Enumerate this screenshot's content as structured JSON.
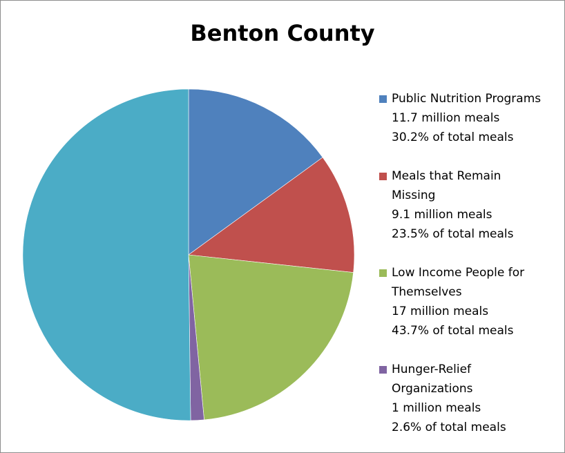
{
  "chart_data": {
    "type": "pie",
    "title": "Benton County",
    "slices": [
      {
        "label_lines": [
          "Public Nutrition Programs"
        ],
        "meals": "11.7 million meals",
        "percent_text": "30.2% of total meals",
        "value": 30.2,
        "color": "#4f81bd"
      },
      {
        "label_lines": [
          "Meals that Remain",
          "Missing"
        ],
        "meals": "9.1 million meals",
        "percent_text": "23.5% of total meals",
        "value": 23.5,
        "color": "#c0504d"
      },
      {
        "label_lines": [
          "Low Income People for",
          "Themselves"
        ],
        "meals": "17 million meals",
        "percent_text": "43.7% of total meals",
        "value": 43.7,
        "color": "#9bbb59"
      },
      {
        "label_lines": [
          "Hunger-Relief",
          "Organizations"
        ],
        "meals": "1 million meals",
        "percent_text": "2.6% of total meals",
        "value": 2.6,
        "color": "#8064a2"
      }
    ],
    "depicted_slices": [
      {
        "value": 15.0,
        "color": "#4f81bd"
      },
      {
        "value": 11.7,
        "color": "#c0504d"
      },
      {
        "value": 21.8,
        "color": "#9bbb59"
      },
      {
        "value": 1.3,
        "color": "#8064a2"
      },
      {
        "value": 50.2,
        "color": "#4bacc6"
      }
    ],
    "legend_position": "right"
  }
}
